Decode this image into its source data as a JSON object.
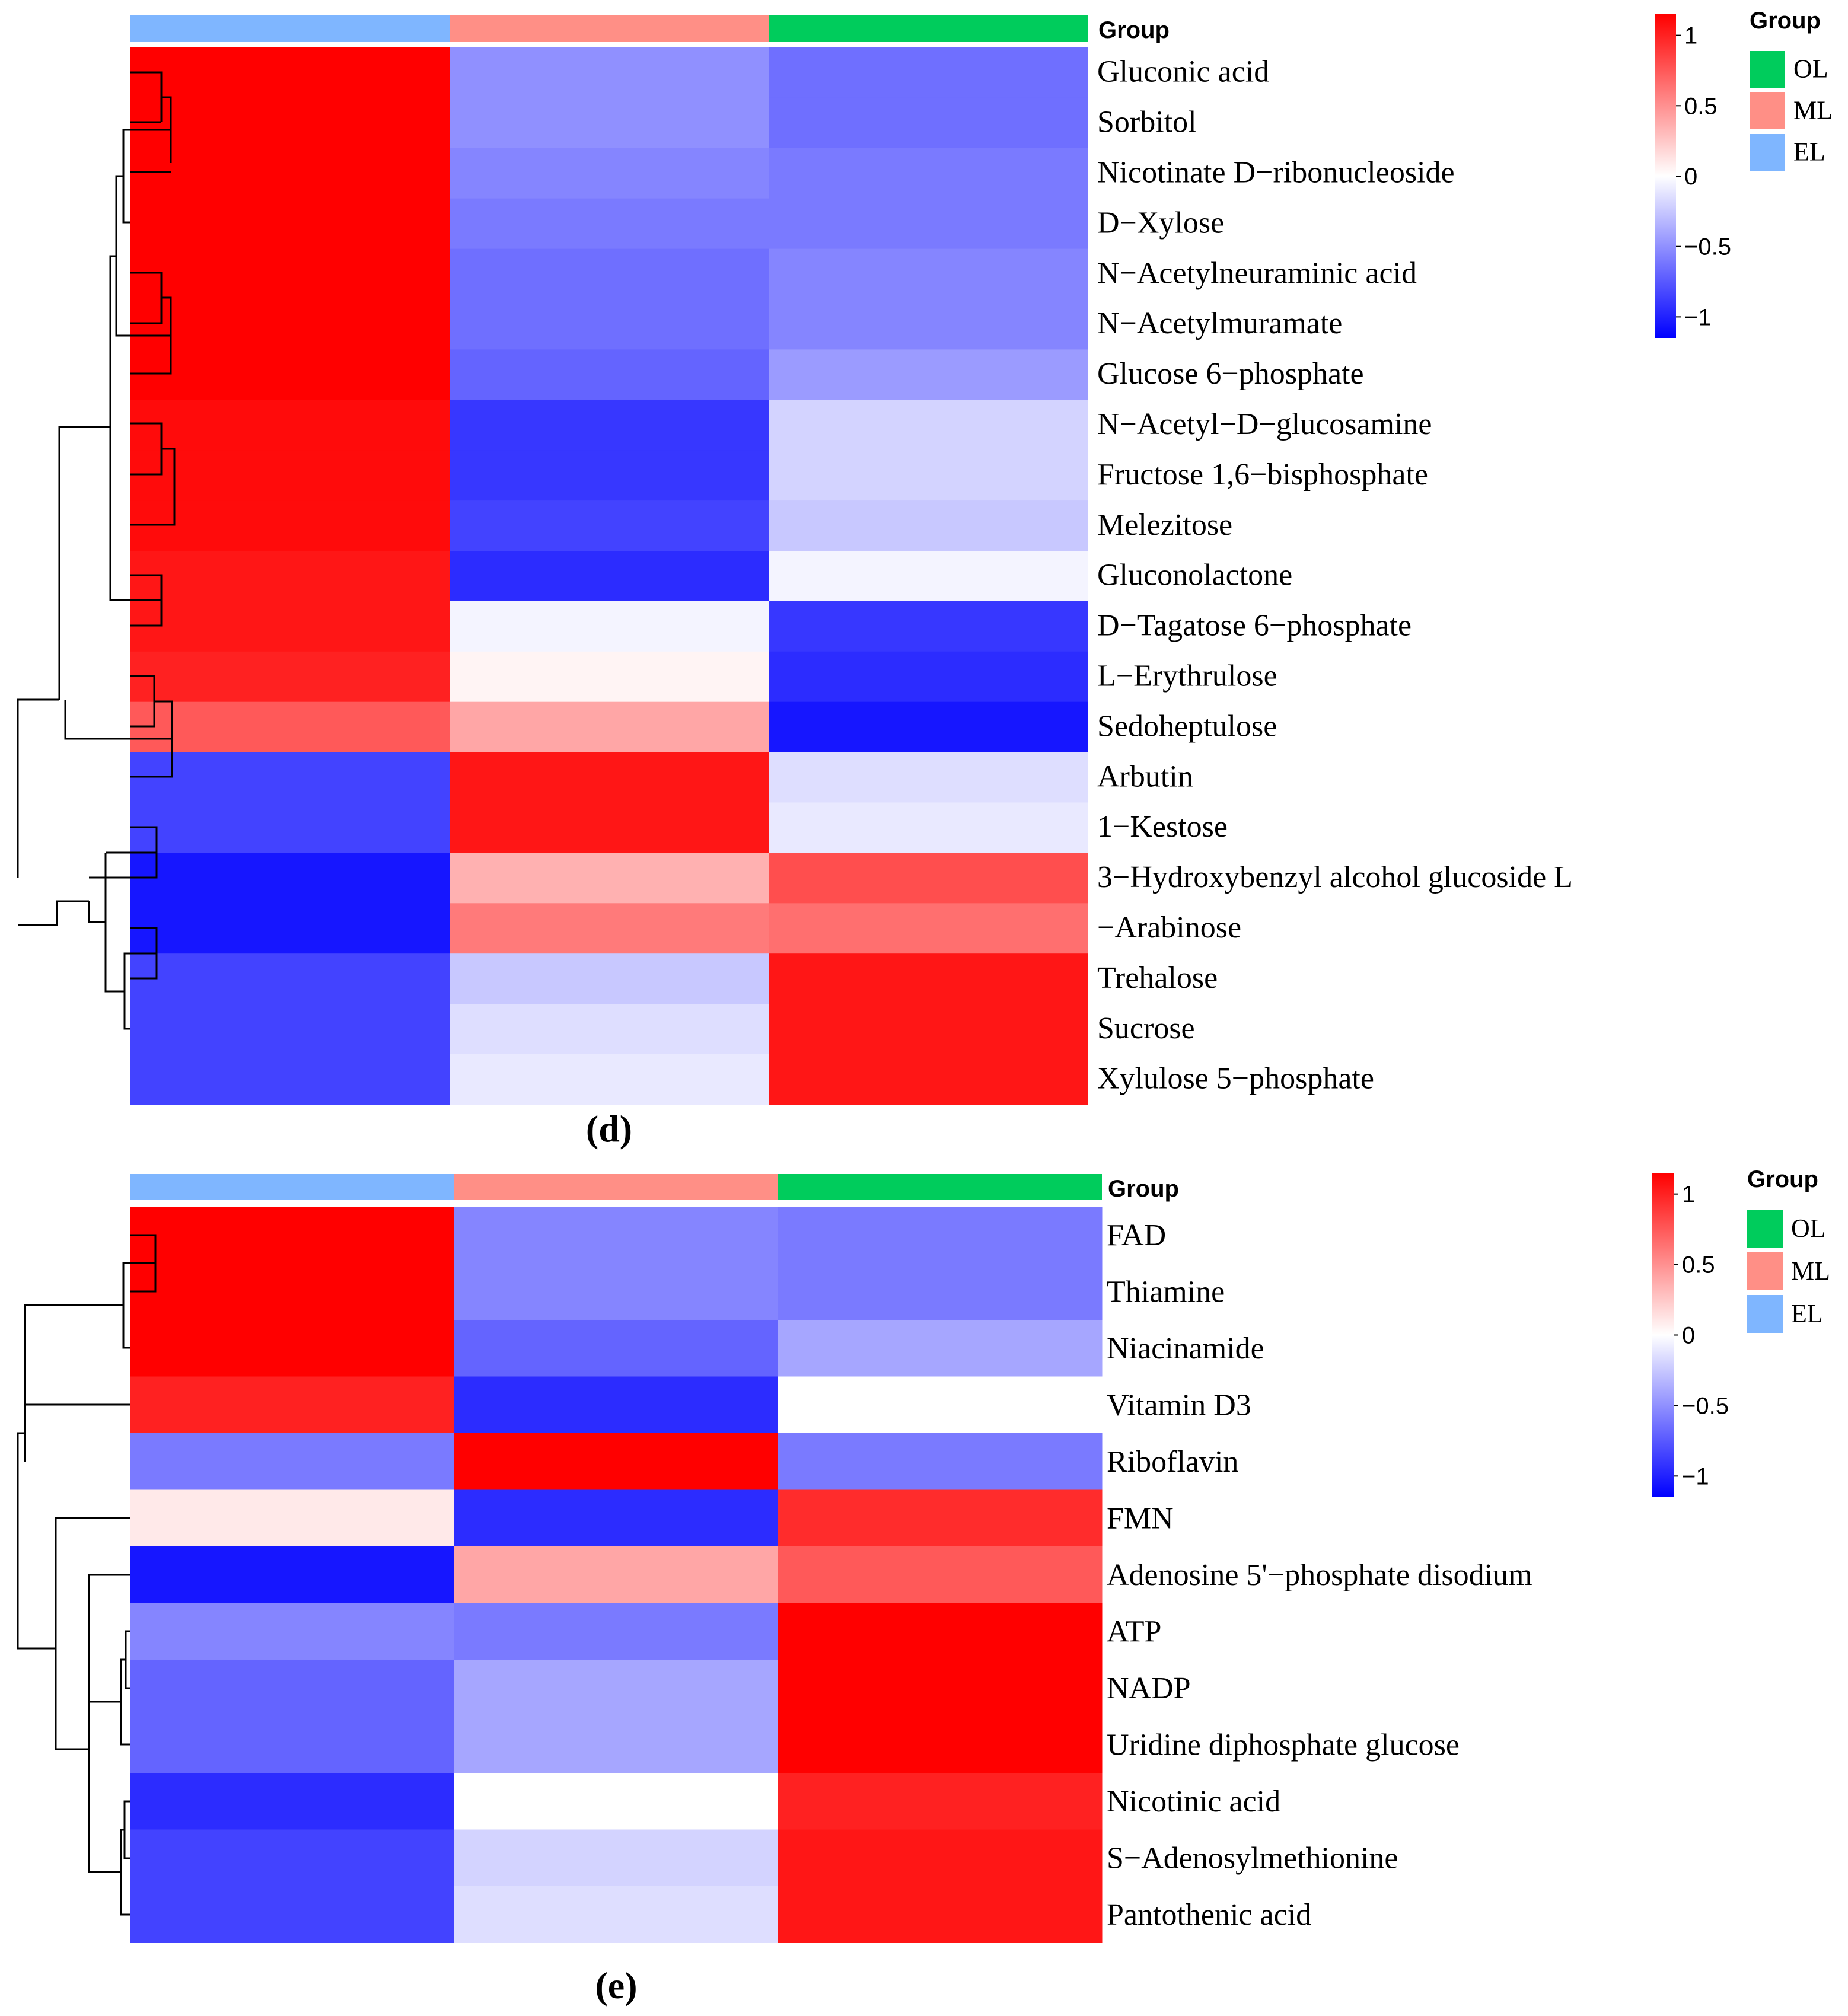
{
  "colors": {
    "group_EL": "#7fb6ff",
    "group_ML": "#ff8f86",
    "group_OL": "#00cc5c",
    "low": "#0000ff",
    "mid": "#ffffff",
    "high": "#ff0000",
    "dendrogram": "#000000"
  },
  "chart_data": [
    {
      "type": "heatmap",
      "panel_label": "(d)",
      "annotation_title": "Group",
      "columns": [
        "EL",
        "ML",
        "OL"
      ],
      "legend": {
        "group_title": "Group",
        "group_entries": [
          "OL",
          "ML",
          "EL"
        ],
        "colorbar_ticks": [
          "1",
          "0.5",
          "0",
          "−0.5",
          "−1"
        ],
        "colorbar_values": [
          1,
          0.5,
          0,
          -0.5,
          -1
        ],
        "range": [
          -1.15,
          1.15
        ]
      },
      "rows": [
        "Gluconic acid",
        "Sorbitol",
        "Nicotinate D−ribonucleoside",
        "D−Xylose",
        "N−Acetylneuraminic acid",
        "N−Acetylmuramate",
        "Glucose 6−phosphate",
        "N−Acetyl−D−glucosamine",
        "Fructose 1,6−bisphosphate",
        "Melezitose",
        "Gluconolactone",
        "D−Tagatose 6−phosphate",
        "L−Erythrulose",
        "Sedoheptulose",
        "Arbutin",
        "1−Kestose",
        "3−Hydroxybenzyl alcohol glucoside L",
        "−Arabinose",
        "Trehalose",
        "Sucrose",
        "Xylulose 5−phosphate"
      ],
      "values": [
        [
          1.15,
          -0.5,
          -0.65
        ],
        [
          1.15,
          -0.5,
          -0.65
        ],
        [
          1.15,
          -0.55,
          -0.6
        ],
        [
          1.15,
          -0.6,
          -0.6
        ],
        [
          1.15,
          -0.65,
          -0.55
        ],
        [
          1.15,
          -0.65,
          -0.55
        ],
        [
          1.15,
          -0.7,
          -0.45
        ],
        [
          1.1,
          -0.9,
          -0.2
        ],
        [
          1.1,
          -0.9,
          -0.2
        ],
        [
          1.1,
          -0.85,
          -0.25
        ],
        [
          1.05,
          -0.95,
          -0.05
        ],
        [
          1.05,
          -0.05,
          -0.9
        ],
        [
          1.0,
          0.05,
          -0.95
        ],
        [
          0.75,
          0.4,
          -1.05
        ],
        [
          -0.85,
          1.05,
          -0.15
        ],
        [
          -0.85,
          1.05,
          -0.1
        ],
        [
          -1.05,
          0.35,
          0.8
        ],
        [
          -1.05,
          0.6,
          0.65
        ],
        [
          -0.85,
          -0.25,
          1.05
        ],
        [
          -0.85,
          -0.15,
          1.05
        ],
        [
          -0.85,
          -0.1,
          1.05
        ]
      ]
    },
    {
      "type": "heatmap",
      "panel_label": "(e)",
      "annotation_title": "Group",
      "columns": [
        "EL",
        "ML",
        "OL"
      ],
      "legend": {
        "group_title": "Group",
        "group_entries": [
          "OL",
          "ML",
          "EL"
        ],
        "colorbar_ticks": [
          "1",
          "0.5",
          "0",
          "−0.5",
          "−1"
        ],
        "colorbar_values": [
          1,
          0.5,
          0,
          -0.5,
          -1
        ],
        "range": [
          -1.15,
          1.15
        ]
      },
      "rows": [
        "FAD",
        "Thiamine",
        "Niacinamide",
        "Vitamin D3",
        "Riboflavin",
        "FMN",
        "Adenosine 5'−phosphate disodium",
        "ATP",
        "NADP",
        "Uridine diphosphate glucose",
        "Nicotinic acid",
        "S−Adenosylmethionine",
        "Pantothenic acid"
      ],
      "values": [
        [
          1.15,
          -0.55,
          -0.6
        ],
        [
          1.15,
          -0.55,
          -0.6
        ],
        [
          1.15,
          -0.7,
          -0.4
        ],
        [
          1.0,
          -0.95,
          0.0
        ],
        [
          -0.6,
          1.15,
          -0.6
        ],
        [
          0.1,
          -0.95,
          0.95
        ],
        [
          -1.05,
          0.4,
          0.75
        ],
        [
          -0.55,
          -0.6,
          1.15
        ],
        [
          -0.7,
          -0.4,
          1.15
        ],
        [
          -0.7,
          -0.4,
          1.15
        ],
        [
          -0.95,
          0.0,
          1.0
        ],
        [
          -0.85,
          -0.2,
          1.05
        ],
        [
          -0.85,
          -0.15,
          1.05
        ]
      ]
    }
  ]
}
